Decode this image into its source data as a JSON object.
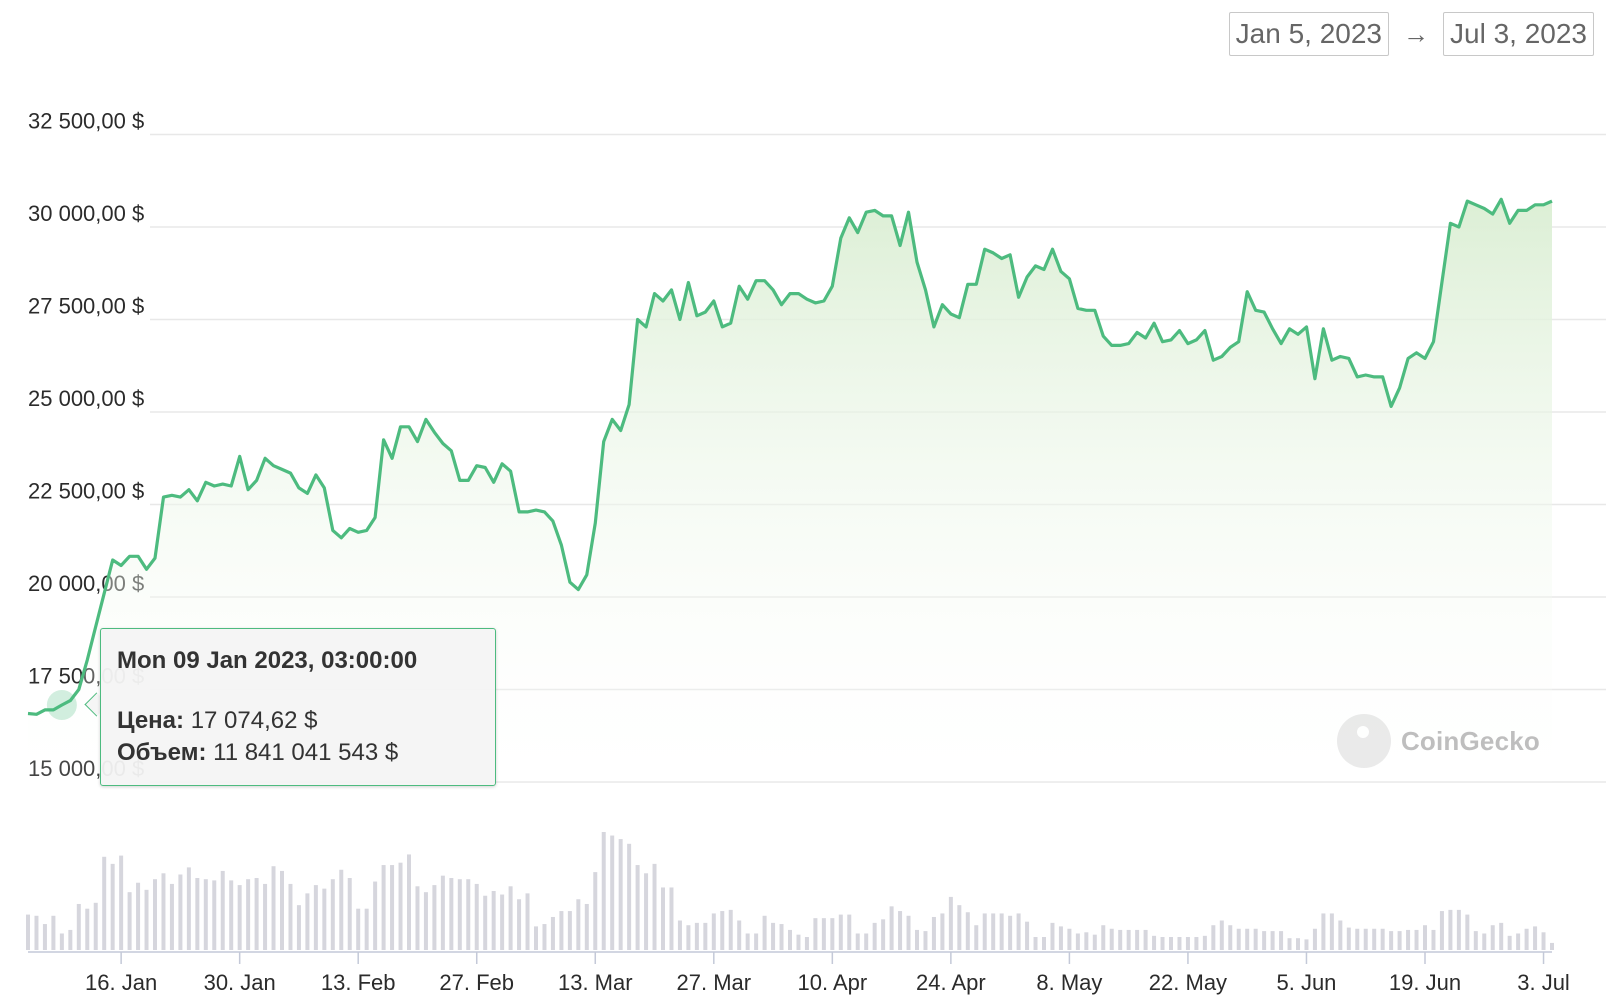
{
  "date_range": {
    "start": "Jan 5, 2023",
    "arrow": "→",
    "end": "Jul 3, 2023"
  },
  "tooltip": {
    "title": "Mon 09 Jan 2023, 03:00:00",
    "price_label": "Цена:",
    "price_value": "17 074,62 $",
    "volume_label": "Объем:",
    "volume_value": "11 841 041 543 $"
  },
  "watermark": {
    "text": "CoinGecko"
  },
  "colors": {
    "line": "#4dbb7f",
    "area_top": "#dcefd5",
    "grid": "#e8e8e8",
    "volume_bar": "#d6d6dd"
  },
  "chart_data": {
    "type": "area",
    "x_start": "2023-01-05",
    "x_end": "2023-07-04",
    "ylim": [
      15000,
      33000
    ],
    "y_ticks": [
      15000,
      17500,
      20000,
      22500,
      25000,
      27500,
      30000,
      32500
    ],
    "y_tick_labels": [
      "15 000,00 $",
      "17 500,00 $",
      "20 000,00 $",
      "22 500,00 $",
      "25 000,00 $",
      "27 500,00 $",
      "30 000,00 $",
      "32 500,00 $"
    ],
    "x_ticks": [
      "2023-01-16",
      "2023-01-30",
      "2023-02-13",
      "2023-02-27",
      "2023-03-13",
      "2023-03-27",
      "2023-04-10",
      "2023-04-24",
      "2023-05-08",
      "2023-05-22",
      "2023-06-05",
      "2023-06-19",
      "2023-07-03"
    ],
    "x_tick_labels": [
      "16. Jan",
      "30. Jan",
      "13. Feb",
      "27. Feb",
      "13. Mar",
      "27. Mar",
      "10. Apr",
      "24. Apr",
      "8. May",
      "22. May",
      "5. Jun",
      "19. Jun",
      "3. Jul"
    ],
    "series": [
      {
        "values": [
          [
            0,
            16850
          ],
          [
            1,
            16830
          ],
          [
            2,
            16950
          ],
          [
            3,
            16950
          ],
          [
            4,
            17080
          ],
          [
            5,
            17200
          ],
          [
            6,
            17500
          ],
          [
            7,
            18300
          ],
          [
            8,
            19200
          ],
          [
            9,
            20100
          ],
          [
            10,
            21000
          ],
          [
            11,
            20850
          ],
          [
            12,
            21100
          ],
          [
            13,
            21100
          ],
          [
            14,
            20750
          ],
          [
            15,
            21050
          ],
          [
            16,
            22700
          ],
          [
            17,
            22750
          ],
          [
            18,
            22700
          ],
          [
            19,
            22900
          ],
          [
            20,
            22600
          ],
          [
            21,
            23100
          ],
          [
            22,
            23000
          ],
          [
            23,
            23050
          ],
          [
            24,
            23000
          ],
          [
            25,
            23800
          ],
          [
            26,
            22900
          ],
          [
            27,
            23150
          ],
          [
            28,
            23750
          ],
          [
            29,
            23550
          ],
          [
            30,
            23450
          ],
          [
            31,
            23350
          ],
          [
            32,
            22950
          ],
          [
            33,
            22800
          ],
          [
            34,
            23300
          ],
          [
            35,
            22950
          ],
          [
            36,
            21800
          ],
          [
            37,
            21600
          ],
          [
            38,
            21850
          ],
          [
            39,
            21750
          ],
          [
            40,
            21800
          ],
          [
            41,
            22150
          ],
          [
            42,
            24250
          ],
          [
            43,
            23750
          ],
          [
            44,
            24600
          ],
          [
            45,
            24600
          ],
          [
            46,
            24200
          ],
          [
            47,
            24800
          ],
          [
            48,
            24450
          ],
          [
            49,
            24150
          ],
          [
            50,
            23950
          ],
          [
            51,
            23150
          ],
          [
            52,
            23150
          ],
          [
            53,
            23550
          ],
          [
            54,
            23500
          ],
          [
            55,
            23100
          ],
          [
            56,
            23600
          ],
          [
            57,
            23400
          ],
          [
            58,
            22300
          ],
          [
            59,
            22300
          ],
          [
            60,
            22350
          ],
          [
            61,
            22300
          ],
          [
            62,
            22050
          ],
          [
            63,
            21400
          ],
          [
            64,
            20400
          ],
          [
            65,
            20200
          ],
          [
            66,
            20600
          ],
          [
            67,
            22000
          ],
          [
            68,
            24200
          ],
          [
            69,
            24800
          ],
          [
            70,
            24500
          ],
          [
            71,
            25200
          ],
          [
            72,
            27500
          ],
          [
            73,
            27300
          ],
          [
            74,
            28200
          ],
          [
            75,
            28000
          ],
          [
            76,
            28300
          ],
          [
            77,
            27500
          ],
          [
            78,
            28500
          ],
          [
            79,
            27600
          ],
          [
            80,
            27700
          ],
          [
            81,
            28000
          ],
          [
            82,
            27300
          ],
          [
            83,
            27400
          ],
          [
            84,
            28400
          ],
          [
            85,
            28050
          ],
          [
            86,
            28550
          ],
          [
            87,
            28550
          ],
          [
            88,
            28300
          ],
          [
            89,
            27900
          ],
          [
            90,
            28200
          ],
          [
            91,
            28200
          ],
          [
            92,
            28050
          ],
          [
            93,
            27950
          ],
          [
            94,
            28000
          ],
          [
            95,
            28400
          ],
          [
            96,
            29700
          ],
          [
            97,
            30250
          ],
          [
            98,
            29850
          ],
          [
            99,
            30400
          ],
          [
            100,
            30450
          ],
          [
            101,
            30300
          ],
          [
            102,
            30300
          ],
          [
            103,
            29500
          ],
          [
            104,
            30400
          ],
          [
            105,
            29050
          ],
          [
            106,
            28300
          ],
          [
            107,
            27300
          ],
          [
            108,
            27900
          ],
          [
            109,
            27650
          ],
          [
            110,
            27550
          ],
          [
            111,
            28450
          ],
          [
            112,
            28450
          ],
          [
            113,
            29400
          ],
          [
            114,
            29300
          ],
          [
            115,
            29150
          ],
          [
            116,
            29250
          ],
          [
            117,
            28100
          ],
          [
            118,
            28650
          ],
          [
            119,
            28950
          ],
          [
            120,
            28850
          ],
          [
            121,
            29400
          ],
          [
            122,
            28800
          ],
          [
            123,
            28600
          ],
          [
            124,
            27800
          ],
          [
            125,
            27750
          ],
          [
            126,
            27750
          ],
          [
            127,
            27050
          ],
          [
            128,
            26800
          ],
          [
            129,
            26800
          ],
          [
            130,
            26850
          ],
          [
            131,
            27150
          ],
          [
            132,
            27000
          ],
          [
            133,
            27400
          ],
          [
            134,
            26900
          ],
          [
            135,
            26950
          ],
          [
            136,
            27200
          ],
          [
            137,
            26850
          ],
          [
            138,
            26950
          ],
          [
            139,
            27200
          ],
          [
            140,
            26400
          ],
          [
            141,
            26500
          ],
          [
            142,
            26750
          ],
          [
            143,
            26900
          ],
          [
            144,
            28250
          ],
          [
            145,
            27750
          ],
          [
            146,
            27700
          ],
          [
            147,
            27250
          ],
          [
            148,
            26850
          ],
          [
            149,
            27250
          ],
          [
            150,
            27100
          ],
          [
            151,
            27300
          ],
          [
            152,
            25900
          ],
          [
            153,
            27250
          ],
          [
            154,
            26400
          ],
          [
            155,
            26500
          ],
          [
            156,
            26450
          ],
          [
            157,
            25950
          ],
          [
            158,
            26000
          ],
          [
            159,
            25950
          ],
          [
            160,
            25950
          ],
          [
            161,
            25150
          ],
          [
            162,
            25650
          ],
          [
            163,
            26450
          ],
          [
            164,
            26600
          ],
          [
            165,
            26450
          ],
          [
            166,
            26900
          ],
          [
            167,
            28500
          ],
          [
            168,
            30100
          ],
          [
            169,
            30000
          ],
          [
            170,
            30700
          ],
          [
            171,
            30600
          ],
          [
            172,
            30500
          ],
          [
            173,
            30350
          ],
          [
            174,
            30750
          ],
          [
            175,
            30100
          ],
          [
            176,
            30450
          ],
          [
            177,
            30450
          ],
          [
            178,
            30600
          ],
          [
            179,
            30600
          ],
          [
            180,
            30700
          ]
        ]
      },
      {
        "values": [
          30,
          29,
          22,
          29,
          14,
          17,
          39,
          35,
          40,
          79,
          73,
          80,
          49,
          57,
          51,
          60,
          65,
          56,
          64,
          70,
          61,
          60,
          59,
          67,
          59,
          55,
          60,
          61,
          56,
          71,
          67,
          56,
          38,
          48,
          55,
          52,
          60,
          68,
          61,
          35,
          35,
          58,
          72,
          72,
          74,
          81,
          54,
          49,
          55,
          63,
          61,
          60,
          60,
          56,
          46,
          50,
          47,
          54,
          43,
          48,
          20,
          22,
          28,
          33,
          33,
          43,
          39,
          66,
          100,
          97,
          94,
          90,
          72,
          65,
          73,
          53,
          53,
          25,
          21,
          23,
          23,
          31,
          33,
          34,
          25,
          14,
          14,
          29,
          23,
          22,
          17,
          13,
          11,
          27,
          27,
          27,
          30,
          30,
          14,
          14,
          23,
          26,
          37,
          33,
          29,
          17,
          16,
          28,
          31,
          45,
          38,
          32,
          21,
          31,
          31,
          31,
          29,
          31,
          24,
          11,
          11,
          23,
          20,
          18,
          14,
          15,
          13,
          21,
          18,
          17,
          17,
          17,
          17,
          12,
          11,
          11,
          11,
          11,
          11,
          12,
          21,
          25,
          21,
          18,
          18,
          18,
          16,
          16,
          16,
          10,
          10,
          9,
          18,
          31,
          31,
          25,
          19,
          18,
          18,
          18,
          18,
          16,
          16,
          17,
          17,
          21,
          17,
          33,
          34,
          34,
          30,
          16,
          14,
          21,
          23,
          12,
          14,
          18,
          20,
          15,
          6
        ]
      }
    ],
    "ylabel": "",
    "xlabel": "",
    "grid": "horizontal"
  }
}
